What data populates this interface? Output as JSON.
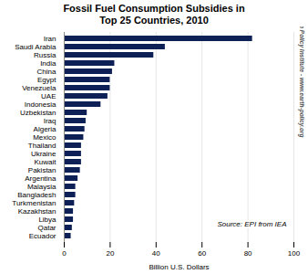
{
  "chart_data": {
    "type": "bar",
    "orientation": "horizontal",
    "title": "Fossil Fuel Consumption Subsidies in\nTop 25 Countries, 2010",
    "xlabel": "Billion U.S. Dollars",
    "annotations": [
      "Source: EPI from IEA",
      "Earth Policy Institute - www.earth-policy.org"
    ],
    "categories": [
      "Iran",
      "Saudi Arabia",
      "Russia",
      "India",
      "China",
      "Egypt",
      "Venezuela",
      "UAE",
      "Indonesia",
      "Uzbekistan",
      "Iraq",
      "Algeria",
      "Mexico",
      "Thailand",
      "Ukraine",
      "Kuwait",
      "Pakistan",
      "Argentina",
      "Malaysia",
      "Bangladesh",
      "Turkmenistan",
      "Kazakhstan",
      "Libya",
      "Qatar",
      "Ecuador"
    ],
    "values": [
      82,
      44,
      39,
      22,
      21,
      20,
      20,
      19,
      16,
      10,
      9.5,
      9,
      8.5,
      7.5,
      7.5,
      7.5,
      7,
      6,
      5,
      5,
      4.5,
      4,
      4,
      3.5,
      3
    ],
    "color": "#0d2157",
    "xlim": [
      0,
      100
    ],
    "xticks": [
      0,
      20,
      40,
      60,
      80,
      100
    ],
    "grid": true
  }
}
